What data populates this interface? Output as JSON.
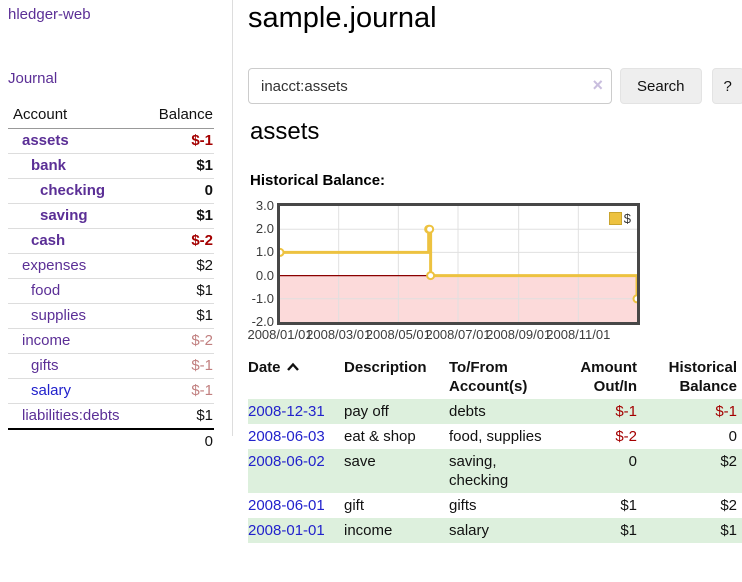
{
  "colors": {
    "link_purple": "#5b2f96",
    "link_blue": "#2222cc",
    "negative_strong": "#a40000",
    "negative_muted": "#c17f7f",
    "row_green": "#ddf0dd",
    "chart_line": "#edc240",
    "chart_negative_region": "#fcdada",
    "chart_zero_line": "#8b0000",
    "chart_border": "#474747"
  },
  "sidebar": {
    "brand": "hledger-web",
    "journal_label": "Journal",
    "accounts_table": {
      "col_account": "Account",
      "col_balance": "Balance",
      "rows": [
        {
          "name": "assets",
          "indent": 1,
          "bold": true,
          "link": "purple",
          "value": "$-1",
          "value_class": "neg"
        },
        {
          "name": "bank",
          "indent": 2,
          "bold": true,
          "link": "purple",
          "value": "$1",
          "value_class": ""
        },
        {
          "name": "checking",
          "indent": 3,
          "bold": true,
          "link": "purple",
          "value": "0",
          "value_class": ""
        },
        {
          "name": "saving",
          "indent": 3,
          "bold": true,
          "link": "purple",
          "value": "$1",
          "value_class": ""
        },
        {
          "name": "cash",
          "indent": 2,
          "bold": true,
          "link": "purple",
          "value": "$-2",
          "value_class": "neg"
        },
        {
          "name": "expenses",
          "indent": 1,
          "bold": false,
          "link": "purple",
          "value": "$2",
          "value_class": ""
        },
        {
          "name": "food",
          "indent": 2,
          "bold": false,
          "link": "purple",
          "value": "$1",
          "value_class": ""
        },
        {
          "name": "supplies",
          "indent": 2,
          "bold": false,
          "link": "purple",
          "value": "$1",
          "value_class": ""
        },
        {
          "name": "income",
          "indent": 1,
          "bold": false,
          "link": "purple",
          "value": "$-2",
          "value_class": "rose"
        },
        {
          "name": "gifts",
          "indent": 2,
          "bold": false,
          "link": "purple",
          "value": "$-1",
          "value_class": "rose"
        },
        {
          "name": "salary",
          "indent": 2,
          "bold": false,
          "link": "blue",
          "value": "$-1",
          "value_class": "rose"
        },
        {
          "name": "liabilities:debts",
          "indent": 1,
          "bold": false,
          "link": "purple",
          "value": "$1",
          "value_class": ""
        }
      ],
      "total": "0"
    }
  },
  "header": {
    "title": "sample.journal"
  },
  "search": {
    "value": "inacct:assets",
    "clear_icon": "×",
    "button_label": "Search",
    "help_label": "?"
  },
  "account_page": {
    "heading": "assets",
    "chart_label": "Historical Balance:"
  },
  "chart_data": {
    "type": "line",
    "title": "Historical Balance:",
    "steps": true,
    "xlim": [
      "2008-01-01",
      "2008-12-31"
    ],
    "ylim": [
      -2,
      3
    ],
    "y_ticks": [
      3.0,
      2.0,
      1.0,
      0.0,
      -1.0,
      -2.0
    ],
    "x_ticks": [
      "2008/01/01",
      "2008/03/01",
      "2008/05/01",
      "2008/07/01",
      "2008/09/01",
      "2008/11/01"
    ],
    "series": [
      {
        "name": "$",
        "color": "#edc240",
        "points": [
          [
            "2008-01-01",
            1
          ],
          [
            "2008-06-01",
            2
          ],
          [
            "2008-06-02",
            2
          ],
          [
            "2008-06-03",
            0
          ],
          [
            "2008-12-31",
            -1
          ]
        ]
      }
    ],
    "legend": {
      "label": "$",
      "position": "top-right"
    },
    "grid": true
  },
  "register": {
    "columns": [
      {
        "label": "Date",
        "align": "left",
        "sort": "asc"
      },
      {
        "label": "Description",
        "align": "left"
      },
      {
        "label": "To/From Account(s)",
        "align": "left"
      },
      {
        "label": "Amount Out/In",
        "align": "right"
      },
      {
        "label": "Historical Balance",
        "align": "right"
      }
    ],
    "rows": [
      {
        "date": "2008-12-31",
        "description": "pay off",
        "accounts": "debts",
        "amount": "$-1",
        "amount_class": "neg",
        "balance": "$-1",
        "balance_class": "neg"
      },
      {
        "date": "2008-06-03",
        "description": "eat & shop",
        "accounts": "food, supplies",
        "amount": "$-2",
        "amount_class": "neg",
        "balance": "0",
        "balance_class": ""
      },
      {
        "date": "2008-06-02",
        "description": "save",
        "accounts": "saving, checking",
        "amount": "0",
        "amount_class": "",
        "balance": "$2",
        "balance_class": ""
      },
      {
        "date": "2008-06-01",
        "description": "gift",
        "accounts": "gifts",
        "amount": "$1",
        "amount_class": "",
        "balance": "$2",
        "balance_class": ""
      },
      {
        "date": "2008-01-01",
        "description": "income",
        "accounts": "salary",
        "amount": "$1",
        "amount_class": "",
        "balance": "$1",
        "balance_class": ""
      }
    ]
  }
}
